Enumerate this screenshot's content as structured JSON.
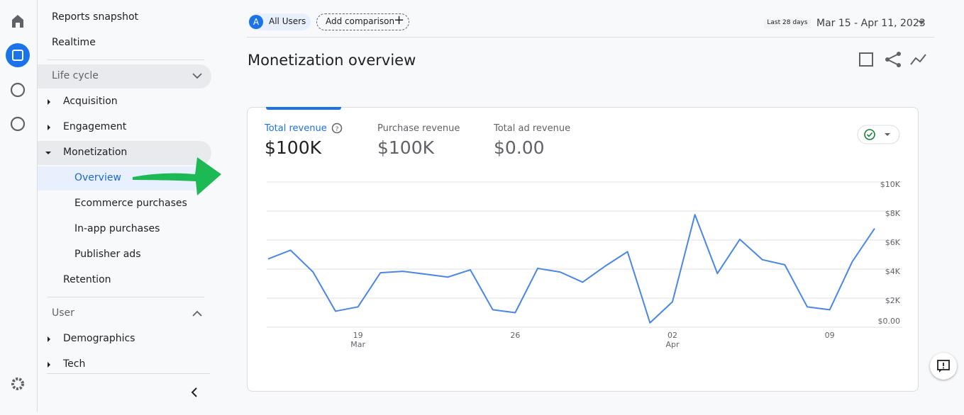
{
  "sidebar": {
    "reports_snapshot": "Reports snapshot",
    "realtime": "Realtime",
    "lifecycle": {
      "title": "Life cycle",
      "acquisition": "Acquisition",
      "engagement": "Engagement",
      "monetization": {
        "title": "Monetization",
        "items": [
          "Overview",
          "Ecommerce purchases",
          "In-app purchases",
          "Publisher ads"
        ]
      },
      "retention": "Retention"
    },
    "user": {
      "title": "User",
      "items": [
        "Demographics",
        "Tech"
      ]
    }
  },
  "header": {
    "segment_badge": "A",
    "segment": "All Users",
    "add_comparison": "Add comparison",
    "date_range_label": "Last 28 days",
    "date_range": "Mar 15 - Apr 11, 2023"
  },
  "page_title": "Monetization overview",
  "metrics": [
    {
      "name": "Total revenue",
      "value": "$100K"
    },
    {
      "name": "Purchase revenue",
      "value": "$100K"
    },
    {
      "name": "Total ad revenue",
      "value": "$0.00"
    }
  ],
  "chart_data": {
    "type": "line",
    "categories": [
      null,
      null,
      null,
      null,
      "19",
      null,
      null,
      null,
      null,
      null,
      null,
      "26",
      null,
      null,
      null,
      null,
      null,
      null,
      "02",
      null,
      null,
      null,
      null,
      null,
      null,
      "09",
      null,
      null
    ],
    "category_months": [
      null,
      null,
      null,
      null,
      "Mar",
      null,
      null,
      null,
      null,
      null,
      null,
      null,
      null,
      null,
      null,
      null,
      null,
      null,
      "Apr",
      null,
      null,
      null,
      null,
      null,
      null,
      null,
      null,
      null
    ],
    "series": [
      {
        "name": "Total revenue",
        "color": "#4a86e8",
        "values": [
          4700,
          5300,
          3800,
          1100,
          1400,
          3750,
          3850,
          3650,
          3450,
          3950,
          1200,
          1000,
          4050,
          3800,
          3100,
          4200,
          5200,
          300,
          1750,
          7750,
          3700,
          6050,
          4650,
          4300,
          1400,
          1200,
          4500,
          6800
        ]
      }
    ],
    "ylim": [
      0,
      10000
    ],
    "yticks": [
      {
        "value": 0,
        "label": "$0.00"
      },
      {
        "value": 2000,
        "label": "$2K"
      },
      {
        "value": 4000,
        "label": "$4K"
      },
      {
        "value": 6000,
        "label": "$6K"
      },
      {
        "value": 8000,
        "label": "$8K"
      },
      {
        "value": 10000,
        "label": "$10K"
      }
    ],
    "grid": true
  }
}
